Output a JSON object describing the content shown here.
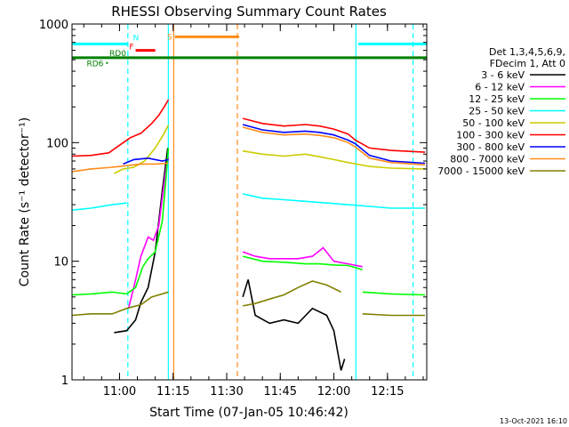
{
  "chart_data": {
    "type": "line",
    "title": "RHESSI Observing Summary Count Rates",
    "xlabel": "Start Time (07-Jan-05 10:46:42)",
    "ylabel": "Count Rate (s⁻¹ detector⁻¹)",
    "yscale": "log",
    "xlim": [
      "10:46:42",
      "12:26:00"
    ],
    "ylim": [
      1,
      1000
    ],
    "x_ticks": [
      "11:00",
      "11:15",
      "11:30",
      "11:45",
      "12:00",
      "12:15"
    ],
    "y_ticks": [
      "1",
      "10",
      "100",
      "1000"
    ],
    "legend_position": "right",
    "legend_header": [
      "Det 1,3,4,5,6,9,",
      "FDecim 1, Att 0"
    ],
    "timestamp": "13-Oct-2021 16:10",
    "annotations": {
      "flags": [
        {
          "label": "N",
          "color": "#00ffff",
          "x": [
            "10:46:42",
            "11:02:30"
          ],
          "level": 680
        },
        {
          "label": "N",
          "color": "#00ffff",
          "x": [
            "12:06:50",
            "12:26:00"
          ],
          "level": 680
        },
        {
          "label": "F",
          "color": "#ff0000",
          "x": [
            "11:04:30",
            "11:10:00"
          ],
          "level": 600
        },
        {
          "label": "S",
          "color": "#ff8c1a",
          "x": [
            "11:15:30",
            "11:33:30"
          ],
          "level": 780
        },
        {
          "label": "RD0",
          "color": "#008000",
          "x": [
            "10:46:42",
            "12:26:00"
          ],
          "level": 520
        },
        {
          "label": "RD6",
          "color": "#008000",
          "x": [
            "10:56:30",
            "10:56:30"
          ],
          "level": 470
        }
      ],
      "boundaries": [
        {
          "time": "11:02:20",
          "color": "#00ffff",
          "style": "dashed"
        },
        {
          "time": "11:13:40",
          "color": "#00ffff",
          "style": "solid"
        },
        {
          "time": "11:15:10",
          "color": "#ff8c1a",
          "style": "solid"
        },
        {
          "time": "11:33:00",
          "color": "#ff8c1a",
          "style": "dashed"
        },
        {
          "time": "12:06:10",
          "color": "#00ffff",
          "style": "solid"
        },
        {
          "time": "12:22:10",
          "color": "#00ffff",
          "style": "dashed"
        }
      ]
    },
    "series": [
      {
        "name": "3 - 6 keV",
        "color": "#000000",
        "segments": [
          [
            [
              "10:58:30",
              2.5
            ],
            [
              "11:02:00",
              2.6
            ],
            [
              "11:04:30",
              3.2
            ],
            [
              "11:06:00",
              4.5
            ],
            [
              "11:08:00",
              6
            ],
            [
              "11:10:00",
              12
            ],
            [
              "11:12:00",
              40
            ],
            [
              "11:13:30",
              90
            ]
          ],
          [
            [
              "11:34:30",
              5
            ],
            [
              "11:36:00",
              7
            ],
            [
              "11:38:00",
              3.5
            ],
            [
              "11:42:00",
              3
            ],
            [
              "11:46:00",
              3.2
            ],
            [
              "11:50:00",
              3
            ],
            [
              "11:54:00",
              4
            ],
            [
              "11:58:00",
              3.5
            ],
            [
              "12:00:00",
              2.6
            ],
            [
              "12:02:00",
              1.2
            ],
            [
              "12:03:00",
              1.5
            ]
          ]
        ]
      },
      {
        "name": "6 - 12 keV",
        "color": "#ff00ff",
        "segments": [
          [
            [
              "11:02:30",
              4
            ],
            [
              "11:04:00",
              6
            ],
            [
              "11:06:00",
              11
            ],
            [
              "11:08:00",
              16
            ],
            [
              "11:09:30",
              15
            ],
            [
              "11:11:00",
              20
            ],
            [
              "11:13:00",
              60
            ],
            [
              "11:13:40",
              75
            ]
          ],
          [
            [
              "11:34:30",
              12
            ],
            [
              "11:38:00",
              11
            ],
            [
              "11:42:00",
              10.5
            ],
            [
              "11:46:00",
              10.5
            ],
            [
              "11:50:00",
              10.5
            ],
            [
              "11:54:00",
              11
            ],
            [
              "11:57:00",
              13
            ],
            [
              "12:00:00",
              10
            ],
            [
              "12:04:00",
              9.5
            ],
            [
              "12:08:00",
              9
            ]
          ]
        ]
      },
      {
        "name": "12 - 25 keV",
        "color": "#00ff00",
        "segments": [
          [
            [
              "10:46:42",
              5.2
            ],
            [
              "10:52:00",
              5.3
            ],
            [
              "10:58:00",
              5.5
            ],
            [
              "11:02:00",
              5.3
            ],
            [
              "11:04:30",
              6
            ],
            [
              "11:06:30",
              9
            ],
            [
              "11:08:00",
              10.5
            ],
            [
              "11:10:00",
              12
            ],
            [
              "11:12:00",
              22
            ],
            [
              "11:13:40",
              90
            ]
          ],
          [
            [
              "11:34:30",
              11
            ],
            [
              "11:40:00",
              10
            ],
            [
              "11:46:00",
              9.8
            ],
            [
              "11:52:00",
              9.5
            ],
            [
              "11:56:00",
              9.5
            ],
            [
              "12:00:00",
              9.3
            ],
            [
              "12:04:00",
              9.2
            ],
            [
              "12:08:00",
              8.5
            ]
          ],
          [
            [
              "12:08:00",
              5.5
            ],
            [
              "12:16:00",
              5.3
            ],
            [
              "12:25:30",
              5.2
            ]
          ]
        ]
      },
      {
        "name": "25 - 50 keV",
        "color": "#00ffff",
        "segments": [
          [
            [
              "10:46:42",
              27
            ],
            [
              "10:52:00",
              28
            ],
            [
              "10:58:00",
              30
            ],
            [
              "11:02:00",
              31
            ]
          ],
          [
            [
              "11:34:30",
              37
            ],
            [
              "11:40:00",
              34
            ],
            [
              "11:46:00",
              33
            ],
            [
              "11:52:00",
              32
            ],
            [
              "11:58:00",
              31
            ],
            [
              "12:04:00",
              30
            ],
            [
              "12:10:00",
              29
            ],
            [
              "12:16:00",
              28
            ],
            [
              "12:25:30",
              28
            ]
          ]
        ]
      },
      {
        "name": "50 - 100 keV",
        "color": "#cccc00",
        "segments": [
          [
            [
              "10:58:30",
              55
            ],
            [
              "11:01:00",
              60
            ],
            [
              "11:04:00",
              62
            ],
            [
              "11:07:00",
              70
            ],
            [
              "11:10:00",
              90
            ],
            [
              "11:12:30",
              120
            ],
            [
              "11:13:40",
              140
            ]
          ],
          [
            [
              "11:34:30",
              85
            ],
            [
              "11:40:00",
              80
            ],
            [
              "11:46:00",
              77
            ],
            [
              "11:52:00",
              80
            ],
            [
              "11:56:00",
              76
            ],
            [
              "12:00:00",
              72
            ],
            [
              "12:04:00",
              68
            ],
            [
              "12:10:00",
              63
            ],
            [
              "12:16:00",
              61
            ],
            [
              "12:25:30",
              60
            ]
          ]
        ]
      },
      {
        "name": "100 - 300 keV",
        "color": "#ff0000",
        "segments": [
          [
            [
              "10:46:42",
              77
            ],
            [
              "10:52:00",
              78
            ],
            [
              "10:57:00",
              82
            ],
            [
              "11:00:00",
              95
            ],
            [
              "11:03:00",
              110
            ],
            [
              "11:06:00",
              120
            ],
            [
              "11:09:00",
              145
            ],
            [
              "11:11:00",
              170
            ],
            [
              "11:12:30",
              200
            ],
            [
              "11:13:40",
              230
            ]
          ],
          [
            [
              "11:34:30",
              160
            ],
            [
              "11:40:00",
              145
            ],
            [
              "11:46:00",
              138
            ],
            [
              "11:52:00",
              142
            ],
            [
              "11:56:00",
              138
            ],
            [
              "12:00:00",
              130
            ],
            [
              "12:04:00",
              118
            ],
            [
              "12:06:00",
              105
            ],
            [
              "12:10:00",
              90
            ],
            [
              "12:16:00",
              86
            ],
            [
              "12:25:30",
              83
            ]
          ]
        ]
      },
      {
        "name": "300 - 800 keV",
        "color": "#0000ff",
        "segments": [
          [
            [
              "11:01:00",
              66
            ],
            [
              "11:04:00",
              72
            ],
            [
              "11:08:00",
              74
            ],
            [
              "11:12:00",
              70
            ],
            [
              "11:13:40",
              72
            ]
          ],
          [
            [
              "11:34:30",
              142
            ],
            [
              "11:40:00",
              128
            ],
            [
              "11:46:00",
              122
            ],
            [
              "11:52:00",
              125
            ],
            [
              "11:56:00",
              122
            ],
            [
              "12:00:00",
              116
            ],
            [
              "12:04:00",
              105
            ],
            [
              "12:06:00",
              98
            ],
            [
              "12:10:00",
              78
            ],
            [
              "12:16:00",
              70
            ],
            [
              "12:25:30",
              67
            ]
          ]
        ]
      },
      {
        "name": "800 - 7000 keV",
        "color": "#ff8c1a",
        "segments": [
          [
            [
              "10:46:42",
              57
            ],
            [
              "10:52:00",
              60
            ],
            [
              "10:58:00",
              62
            ],
            [
              "11:02:00",
              64
            ],
            [
              "11:06:00",
              66
            ],
            [
              "11:10:00",
              66
            ],
            [
              "11:13:40",
              67
            ]
          ],
          [
            [
              "11:34:30",
              135
            ],
            [
              "11:40:00",
              122
            ],
            [
              "11:46:00",
              116
            ],
            [
              "11:52:00",
              118
            ],
            [
              "11:56:00",
              115
            ],
            [
              "12:00:00",
              110
            ],
            [
              "12:04:00",
              100
            ],
            [
              "12:06:00",
              92
            ],
            [
              "12:10:00",
              74
            ],
            [
              "12:16:00",
              68
            ],
            [
              "12:25:30",
              65
            ]
          ]
        ]
      },
      {
        "name": "7000 - 15000 keV",
        "color": "#808000",
        "segments": [
          [
            [
              "10:46:42",
              3.5
            ],
            [
              "10:52:00",
              3.6
            ],
            [
              "10:58:00",
              3.6
            ],
            [
              "11:02:00",
              4
            ],
            [
              "11:06:00",
              4.3
            ],
            [
              "11:09:00",
              5
            ],
            [
              "11:13:40",
              5.5
            ]
          ],
          [
            [
              "11:34:30",
              4.2
            ],
            [
              "11:38:00",
              4.4
            ],
            [
              "11:42:00",
              4.8
            ],
            [
              "11:46:00",
              5.2
            ],
            [
              "11:50:00",
              6
            ],
            [
              "11:54:00",
              6.8
            ],
            [
              "11:58:00",
              6.3
            ],
            [
              "12:02:00",
              5.5
            ]
          ],
          [
            [
              "12:08:00",
              3.6
            ],
            [
              "12:16:00",
              3.5
            ],
            [
              "12:25:30",
              3.5
            ]
          ]
        ]
      }
    ]
  }
}
